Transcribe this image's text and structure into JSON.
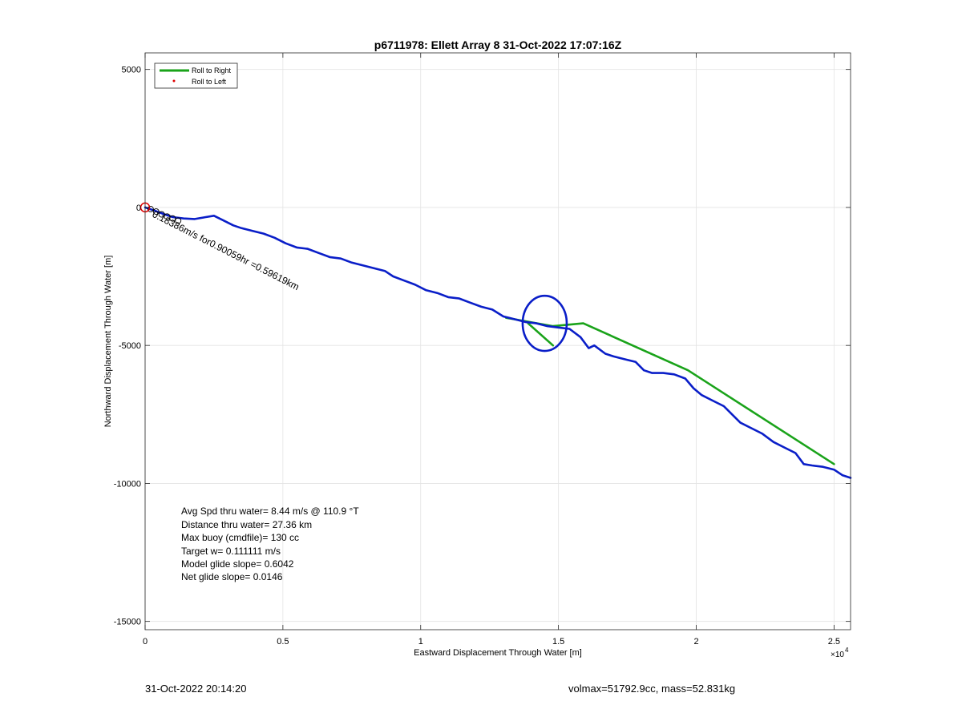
{
  "chart_data": {
    "type": "line",
    "title": "p6711978: Ellett Array 8 31-Oct-2022 17:07:16Z",
    "xlabel": "Eastward Displacement Through Water [m]",
    "ylabel": "Northward Displacement Through Water [m]",
    "xlim": [
      0,
      25600
    ],
    "ylim": [
      -15300,
      5600
    ],
    "x_exponent_label": "×10",
    "x_exponent_power": "4",
    "x_ticks": [
      0,
      5000,
      10000,
      15000,
      20000,
      25000
    ],
    "x_tick_labels": [
      "0",
      "0.5",
      "1",
      "1.5",
      "2",
      "2.5"
    ],
    "y_ticks": [
      5000,
      0,
      -5000,
      -10000,
      -15000
    ],
    "y_tick_labels": [
      "5000",
      "0",
      "-5000",
      "-10000",
      "-15000"
    ],
    "grid": true,
    "legend_position": "top-left",
    "legend": [
      {
        "label": "Roll to Right",
        "color": "#1aa31a",
        "marker": "line"
      },
      {
        "label": "Roll to Left",
        "color": "#e00000",
        "marker": "dot"
      }
    ],
    "series": [
      {
        "name": "Roll to Right",
        "color": "#1aa31a",
        "x": [
          13100,
          14800,
          15900,
          19700,
          25000
        ],
        "y": [
          -4000,
          -4300,
          -4200,
          -5900,
          -9300
        ]
      },
      {
        "name": "",
        "color": "#1aa31a",
        "x": [
          13900,
          14800
        ],
        "y": [
          -4200,
          -5000
        ]
      },
      {
        "color": "#0a1ec8",
        "x": [
          0,
          300,
          700,
          1000,
          1400,
          1800,
          2200,
          2500,
          2800,
          3200,
          3500,
          3900,
          4300,
          4700,
          5100,
          5500,
          5900,
          6300,
          6700,
          7100,
          7500,
          7900,
          8300,
          8700,
          9000,
          9400,
          9800,
          10200,
          10600,
          11000,
          11400,
          11800,
          12200,
          12600,
          13000,
          13400,
          13800,
          14200,
          14600,
          15000,
          15400,
          15800,
          16100,
          16300,
          16700,
          17000,
          17400,
          17800,
          18100,
          18400,
          18800,
          19200,
          19600,
          19900,
          20200,
          20600,
          21000,
          21300,
          21600,
          22000,
          22400,
          22800,
          23200,
          23600,
          23900,
          24200,
          24600,
          25000,
          25300,
          25600
        ],
        "y": [
          0,
          -100,
          -250,
          -350,
          -400,
          -420,
          -350,
          -300,
          -450,
          -650,
          -750,
          -850,
          -950,
          -1100,
          -1300,
          -1450,
          -1500,
          -1650,
          -1800,
          -1850,
          -2000,
          -2100,
          -2200,
          -2300,
          -2500,
          -2650,
          -2800,
          -3000,
          -3100,
          -3250,
          -3300,
          -3450,
          -3600,
          -3700,
          -3950,
          -4050,
          -4150,
          -4200,
          -4300,
          -4350,
          -4400,
          -4700,
          -5100,
          -5000,
          -5300,
          -5400,
          -5500,
          -5600,
          -5900,
          -6000,
          -6000,
          -6050,
          -6200,
          -6550,
          -6800,
          -7000,
          -7200,
          -7500,
          -7800,
          -8000,
          -8200,
          -8500,
          -8700,
          -8900,
          -9300,
          -9350,
          -9400,
          -9500,
          -9700,
          -9800
        ]
      },
      {
        "color": "#0a1ec8",
        "loop_center": [
          14500,
          -4200
        ],
        "loop_radius": [
          800,
          1000
        ]
      }
    ],
    "start_marker": {
      "x": 0,
      "y": 0,
      "color": "#e00000"
    },
    "track_label": "0.18386m/s for0.90059hr =0.59619km",
    "stats": [
      "Avg Spd thru water=  8.44 m/s @ 110.9 °T",
      "Distance thru water= 27.36 km",
      "Max buoy (cmdfile)= 130 cc",
      "Target w= 0.111111 m/s",
      "Model glide slope= 0.6042",
      "Net glide slope= 0.0146"
    ]
  },
  "footer": {
    "timestamp": "31-Oct-2022 20:14:20",
    "summary": "volmax=51792.9cc, mass=52.831kg"
  }
}
